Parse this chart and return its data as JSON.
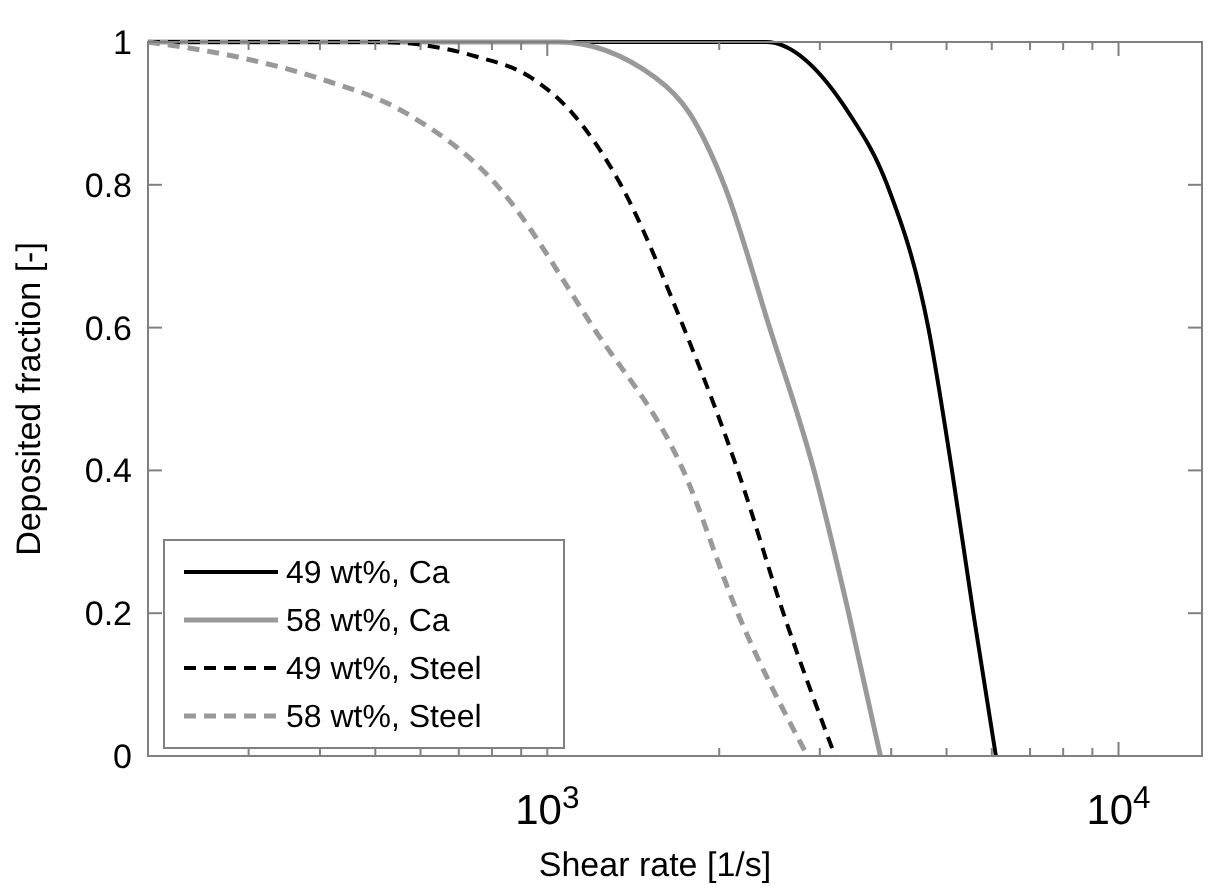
{
  "chart_data": {
    "type": "line",
    "xlabel": "Shear rate [1/s]",
    "ylabel": "Deposited fraction [-]",
    "log": "x",
    "xlim": [
      200,
      14000
    ],
    "ylim": [
      0,
      1
    ],
    "xticks": [
      {
        "value": 200,
        "label": null
      },
      {
        "value": 300,
        "label": null
      },
      {
        "value": 400,
        "label": null
      },
      {
        "value": 500,
        "label": null
      },
      {
        "value": 600,
        "label": null
      },
      {
        "value": 700,
        "label": null
      },
      {
        "value": 800,
        "label": null
      },
      {
        "value": 900,
        "label": null
      },
      {
        "value": 1000,
        "label": "10$^{3}$"
      },
      {
        "value": 2000,
        "label": null
      },
      {
        "value": 3000,
        "label": null
      },
      {
        "value": 4000,
        "label": null
      },
      {
        "value": 5000,
        "label": null
      },
      {
        "value": 6000,
        "label": null
      },
      {
        "value": 7000,
        "label": null
      },
      {
        "value": 8000,
        "label": null
      },
      {
        "value": 9000,
        "label": null
      },
      {
        "value": 10000,
        "label": "10$^{4}$"
      }
    ],
    "yticks": [
      0,
      0.2,
      0.4,
      0.6,
      0.8,
      1
    ],
    "grid": false,
    "legend": "bottom left",
    "marker": "none",
    "series": [
      {
        "name": "49 wt%, Ca",
        "color": "#000000",
        "line_style": "solid",
        "x": [
          200,
          2415,
          3375,
          3935,
          4645,
          5110,
          5570,
          6100
        ],
        "values": [
          1,
          1,
          0.9,
          0.8,
          0.6,
          0.4,
          0.2,
          0
        ]
      },
      {
        "name": "58 wt%, Ca",
        "color": "#999999",
        "line_style": "solid",
        "x": [
          200,
          1047,
          1547,
          1775,
          2040,
          2450,
          2930,
          3370,
          3830
        ],
        "values": [
          1,
          1,
          0.95,
          0.9,
          0.8,
          0.6,
          0.4,
          0.2,
          0
        ]
      },
      {
        "name": "49 wt%, Steel",
        "color": "#000000",
        "line_style": "dashed",
        "x": [
          200,
          507,
          748,
          937,
          1107,
          1345,
          1733,
          2155,
          2590,
          3190
        ],
        "values": [
          1,
          1,
          0.98,
          0.95,
          0.9,
          0.8,
          0.6,
          0.4,
          0.2,
          0
        ]
      },
      {
        "name": "58 wt%, Steel",
        "color": "#999999",
        "line_style": "dashed",
        "x": [
          200,
          283,
          395,
          567,
          815,
          1204,
          1730,
          2155,
          2855
        ],
        "values": [
          1,
          0.98,
          0.95,
          0.9,
          0.8,
          0.6,
          0.4,
          0.2,
          0
        ]
      }
    ]
  }
}
